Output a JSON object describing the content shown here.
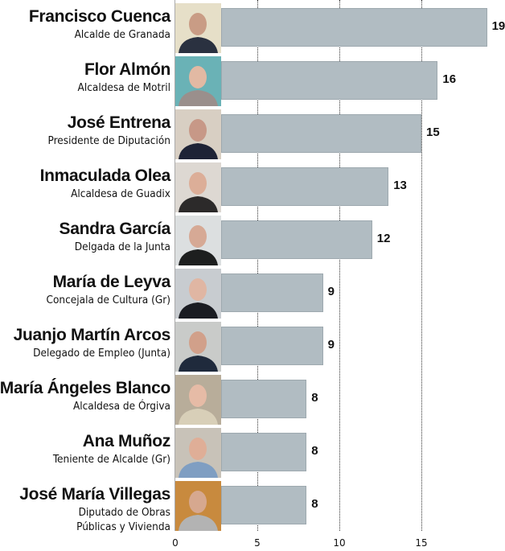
{
  "chart_data": {
    "type": "bar",
    "orientation": "horizontal",
    "title": "",
    "xlabel": "",
    "ylabel": "",
    "xlim": [
      0,
      19
    ],
    "x_ticks": [
      0,
      5,
      10,
      15
    ],
    "grid": "vertical dotted lines at 5, 10, 15",
    "categories": [
      "Francisco Cuenca",
      "Flor Almón",
      "José Entrena",
      "Inmaculada Olea",
      "Sandra García",
      "María de Leyva",
      "Juanjo Martín Arcos",
      "María Ángeles Blanco",
      "Ana Muñoz",
      "José María Villegas"
    ],
    "values": [
      19,
      16,
      15,
      13,
      12,
      9,
      9,
      8,
      8,
      8
    ],
    "bar_color": "#b1bcc2"
  },
  "axis": {
    "ticks": [
      {
        "label": "0",
        "value": 0
      },
      {
        "label": "5",
        "value": 5
      },
      {
        "label": "10",
        "value": 10
      },
      {
        "label": "15",
        "value": 15
      }
    ]
  },
  "rows": [
    {
      "name": "Francisco Cuenca",
      "role": "Alcalde de Granada",
      "value": "19",
      "photo_bg": "#2a3140",
      "photo_skin": "#c99c85",
      "photo_back": "#e6dfc8"
    },
    {
      "name": "Flor Almón",
      "role": "Alcaldesa de Motril",
      "value": "16",
      "photo_bg": "#9a8f8c",
      "photo_skin": "#e2b9a3",
      "photo_back": "#6ab2b6"
    },
    {
      "name": "José Entrena",
      "role": "Presidente de Diputación",
      "value": "15",
      "photo_bg": "#1e2336",
      "photo_skin": "#c79887",
      "photo_back": "#d8cfc3"
    },
    {
      "name": "Inmaculada Olea",
      "role": "Alcaldesa de Guadix",
      "value": "13",
      "photo_bg": "#2c2a2a",
      "photo_skin": "#dcae98",
      "photo_back": "#ddd8d2"
    },
    {
      "name": "Sandra García",
      "role": "Delgada de la Junta",
      "value": "12",
      "photo_bg": "#1d1f1f",
      "photo_skin": "#d6a995",
      "photo_back": "#dcdfe0"
    },
    {
      "name": "María de Leyva",
      "role": "Concejala de Cultura (Gr)",
      "value": "9",
      "photo_bg": "#1a1c22",
      "photo_skin": "#e0b6a3",
      "photo_back": "#c8ccd0"
    },
    {
      "name": "Juanjo Martín Arcos",
      "role": "Delegado de Empleo (Junta)",
      "value": "9",
      "photo_bg": "#1f2a3c",
      "photo_skin": "#d1a08a",
      "photo_back": "#c9cbc9"
    },
    {
      "name": "María Ángeles Blanco",
      "role": "Alcaldesa de Órgiva",
      "value": "8",
      "photo_bg": "#d8cfb8",
      "photo_skin": "#e6bba6",
      "photo_back": "#b8ad9a"
    },
    {
      "name": "Ana Muñoz",
      "role": "Teniente de Alcalde (Gr)",
      "value": "8",
      "photo_bg": "#7f9ec2",
      "photo_skin": "#dfae97",
      "photo_back": "#c8c2b8"
    },
    {
      "name": "José María Villegas",
      "role": "Diputado de Obras\nPúblicas y Vivienda",
      "role_lines": [
        "Diputado de Obras",
        "Públicas y Vivienda"
      ],
      "value": "8",
      "photo_bg": "#b3b3b3",
      "photo_skin": "#d6a88f",
      "photo_back": "#c88a3e"
    }
  ]
}
